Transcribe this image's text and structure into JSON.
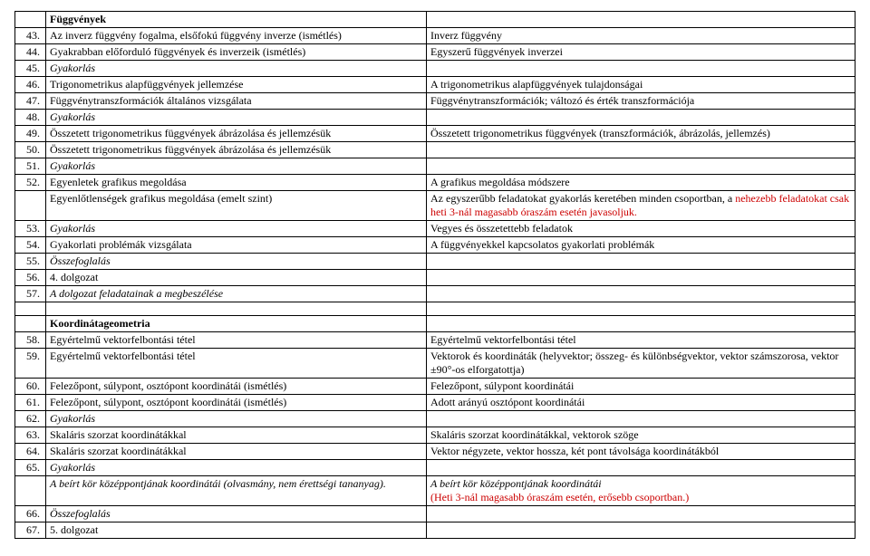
{
  "section1": {
    "header": "Függvények",
    "rows": [
      {
        "num": "43.",
        "left": "Az inverz függvény fogalma, elsőfokú függvény inverze (ismétlés)",
        "right": "Inverz függvény"
      },
      {
        "num": "44.",
        "left": "Gyakrabban előforduló függvények és inverzeik (ismétlés)",
        "right": "Egyszerű függvények inverzei"
      },
      {
        "num": "45.",
        "left": "Gyakorlás",
        "leftItalic": true,
        "right": ""
      },
      {
        "num": "46.",
        "left": "Trigonometrikus alapfüggvények jellemzése",
        "right": "A trigonometrikus alapfüggvények tulajdonságai"
      },
      {
        "num": "47.",
        "left": "Függvénytranszformációk általános vizsgálata",
        "right": "Függvénytranszformációk; változó és érték transzformációja"
      },
      {
        "num": "48.",
        "left": "Gyakorlás",
        "leftItalic": true,
        "right": ""
      },
      {
        "num": "49.",
        "left": "Összetett trigonometrikus függvények ábrázolása és jellemzésük",
        "right": "Összetett trigonometrikus függvények (transzformációk, ábrázolás, jellemzés)"
      },
      {
        "num": "50.",
        "left": "Összetett trigonometrikus függvények ábrázolása és jellemzésük",
        "right": ""
      },
      {
        "num": "51.",
        "left": "Gyakorlás",
        "leftItalic": true,
        "right": ""
      },
      {
        "num": "52.",
        "left": "Egyenletek grafikus megoldása",
        "right": "A grafikus megoldása módszere"
      },
      {
        "num": "",
        "left": "Egyenlőtlenségek grafikus megoldása (emelt szint)",
        "rightHtml": "Az egyszerűbb feladatokat gyakorlás keretében minden csoportban, a <span class=\"red\">nehezebb feladatokat csak heti 3-nál magasabb óraszám esetén javasoljuk.</span>"
      },
      {
        "num": "53.",
        "left": "Gyakorlás",
        "leftItalic": true,
        "right": "Vegyes és összetettebb feladatok"
      },
      {
        "num": "54.",
        "left": "Gyakorlati problémák vizsgálata",
        "right": "A függvényekkel kapcsolatos gyakorlati problémák"
      },
      {
        "num": "55.",
        "left": "Összefoglalás",
        "leftItalic": true,
        "right": ""
      },
      {
        "num": "56.",
        "left": "4. dolgozat",
        "right": ""
      },
      {
        "num": "57.",
        "left": "A dolgozat feladatainak a megbeszélése",
        "leftItalic": true,
        "right": ""
      }
    ]
  },
  "section2": {
    "header": "Koordinátageometria",
    "rows": [
      {
        "num": "58.",
        "left": "Egyértelmű vektorfelbontási tétel",
        "right": "Egyértelmű vektorfelbontási tétel"
      },
      {
        "num": "59.",
        "left": "Egyértelmű vektorfelbontási tétel",
        "right": "Vektorok és koordináták (helyvektor; összeg- és különbségvektor, vektor számszorosa, vektor ±90°-os elforgatottja)"
      },
      {
        "num": "60.",
        "left": "Felezőpont, súlypont, osztópont koordinátái (ismétlés)",
        "right": "Felezőpont, súlypont koordinátái"
      },
      {
        "num": "61.",
        "left": "Felezőpont, súlypont, osztópont koordinátái (ismétlés)",
        "right": "Adott arányú osztópont koordinátái"
      },
      {
        "num": "62.",
        "left": "Gyakorlás",
        "leftItalic": true,
        "right": ""
      },
      {
        "num": "63.",
        "left": "Skaláris szorzat koordinátákkal",
        "right": "Skaláris szorzat koordinátákkal, vektorok szöge"
      },
      {
        "num": "64.",
        "left": "Skaláris szorzat koordinátákkal",
        "right": "Vektor négyzete, vektor hossza, két pont távolsága koordinátákból"
      },
      {
        "num": "65.",
        "left": "Gyakorlás",
        "leftItalic": true,
        "right": ""
      },
      {
        "num": "",
        "leftHtml": "<span class=\"italic\">A beírt kör középpontjának koordinátái (olvasmány, nem érettségi tananyag).</span>",
        "rightHtml": "<span class=\"italic\">A beírt kör középpontjának koordinátái</span><br><span class=\"red\">(Heti 3-nál magasabb óraszám esetén, erősebb csoportban.)</span>"
      },
      {
        "num": "66.",
        "left": "Összefoglalás",
        "leftItalic": true,
        "right": ""
      },
      {
        "num": "67.",
        "left": "5. dolgozat",
        "right": ""
      }
    ]
  }
}
